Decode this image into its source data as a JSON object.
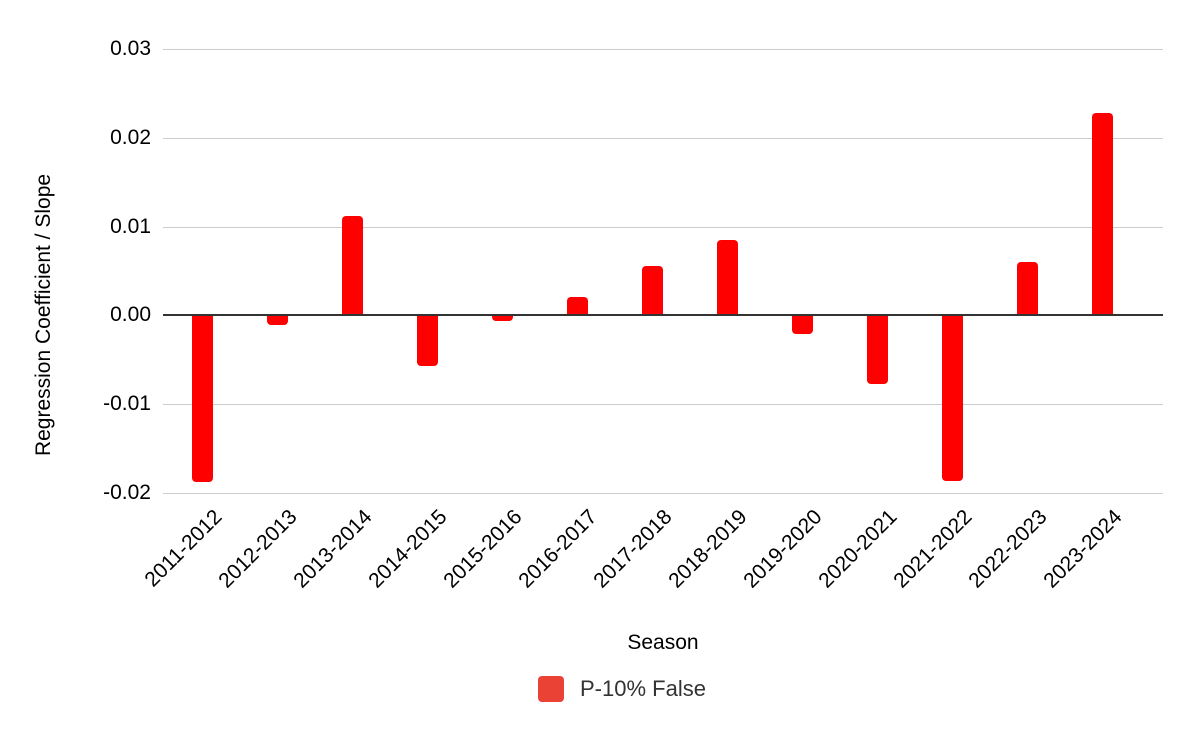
{
  "chart_data": {
    "type": "bar",
    "title": "",
    "xlabel": "Season",
    "ylabel": "Regression Coefficient / Slope",
    "categories": [
      "2011-2012",
      "2012-2013",
      "2013-2014",
      "2014-2015",
      "2015-2016",
      "2016-2017",
      "2017-2018",
      "2018-2019",
      "2019-2020",
      "2020-2021",
      "2021-2022",
      "2022-2023",
      "2023-2024"
    ],
    "series": [
      {
        "name": "P-10% False",
        "values": [
          -0.0188,
          -0.0011,
          0.0112,
          -0.0057,
          -0.0007,
          0.0021,
          0.0056,
          0.0085,
          -0.0021,
          -0.0078,
          -0.0187,
          0.006,
          0.0228
        ]
      }
    ],
    "yticks": [
      0.03,
      0.02,
      0.01,
      0,
      -0.01,
      -0.02
    ],
    "ytick_labels": [
      "0.03",
      "0.02",
      "0.01",
      "0.00",
      "-0.01",
      "-0.02"
    ],
    "ylim": [
      -0.0205,
      0.0305
    ],
    "grid": true,
    "legend_position": "bottom",
    "bar_color": "#ff0000",
    "legend_swatch_color": "#ea4335",
    "gridline_color": "#cccccc",
    "zero_line_color": "#333333"
  }
}
